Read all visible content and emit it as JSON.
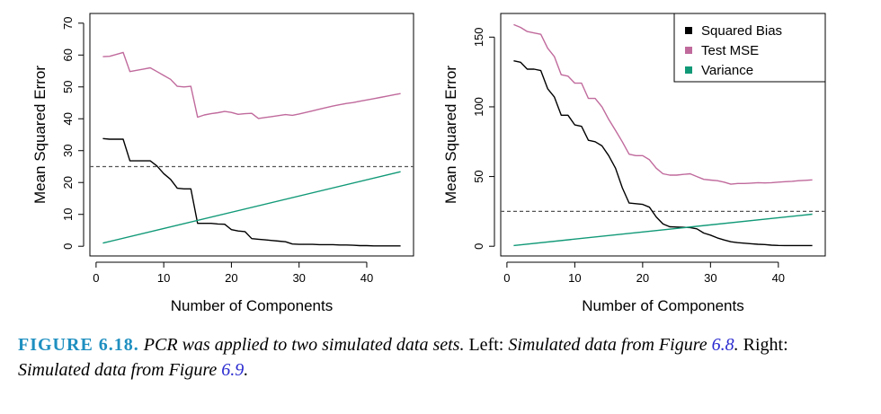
{
  "chart_data": [
    {
      "type": "line",
      "xlabel": "Number of Components",
      "ylabel": "Mean Squared Error",
      "xlim": [
        1,
        45
      ],
      "ylim": [
        0,
        70
      ],
      "xticks": [
        0,
        10,
        20,
        30,
        40
      ],
      "yticks": [
        0,
        10,
        20,
        30,
        40,
        50,
        60,
        70
      ],
      "reference_line": 25,
      "legend": false,
      "series": [
        {
          "color": "#c06a9c",
          "x": [
            1,
            2,
            3,
            4,
            5,
            6,
            7,
            8,
            9,
            10,
            11,
            12,
            13,
            14,
            15,
            16,
            17,
            18,
            19,
            20,
            21,
            22,
            23,
            24,
            25,
            26,
            27,
            28,
            29,
            30,
            31,
            32,
            33,
            34,
            35,
            36,
            37,
            38,
            39,
            40,
            41,
            42,
            43,
            44,
            45
          ],
          "y": [
            59.5,
            59.6,
            60.2,
            60.8,
            54.8,
            55.2,
            55.6,
            56.0,
            54.8,
            53.6,
            52.4,
            50.2,
            50.0,
            50.2,
            40.5,
            41.2,
            41.6,
            41.9,
            42.3,
            42.0,
            41.4,
            41.6,
            41.7,
            40.1,
            40.4,
            40.7,
            41.0,
            41.3,
            41.1,
            41.5,
            42.0,
            42.5,
            43.0,
            43.5,
            44.0,
            44.4,
            44.8,
            45.1,
            45.5,
            45.9,
            46.3,
            46.7,
            47.1,
            47.5,
            47.9
          ]
        },
        {
          "color": "#000000",
          "x": [
            1,
            2,
            3,
            4,
            5,
            6,
            7,
            8,
            9,
            10,
            11,
            12,
            13,
            14,
            15,
            16,
            17,
            18,
            19,
            20,
            21,
            22,
            23,
            24,
            25,
            26,
            27,
            28,
            29,
            30,
            31,
            32,
            33,
            34,
            35,
            36,
            37,
            38,
            39,
            40,
            41,
            42,
            43,
            44,
            45
          ],
          "y": [
            33.8,
            33.6,
            33.6,
            33.6,
            26.8,
            26.8,
            26.8,
            26.8,
            25.2,
            22.8,
            21.0,
            18.2,
            18.0,
            18.0,
            7.2,
            7.2,
            7.2,
            7.0,
            6.9,
            5.2,
            4.8,
            4.6,
            2.4,
            2.2,
            2.0,
            1.8,
            1.6,
            1.4,
            0.7,
            0.6,
            0.6,
            0.6,
            0.5,
            0.5,
            0.5,
            0.4,
            0.4,
            0.3,
            0.2,
            0.2,
            0.1,
            0.1,
            0.1,
            0.1,
            0.1
          ]
        },
        {
          "color": "#119977",
          "x": [
            1,
            45
          ],
          "y": [
            1.0,
            23.4
          ]
        }
      ]
    },
    {
      "type": "line",
      "xlabel": "Number of Components",
      "ylabel": "Mean Squared Error",
      "xlim": [
        1,
        45
      ],
      "ylim": [
        0,
        160
      ],
      "xticks": [
        0,
        10,
        20,
        30,
        40
      ],
      "yticks": [
        0,
        50,
        100,
        150
      ],
      "reference_line": 25,
      "legend": true,
      "legend_position": "top-right",
      "series": [
        {
          "name": "Squared Bias",
          "color": "#000000",
          "x": [
            1,
            2,
            3,
            4,
            5,
            6,
            7,
            8,
            9,
            10,
            11,
            12,
            13,
            14,
            15,
            16,
            17,
            18,
            19,
            20,
            21,
            22,
            23,
            24,
            25,
            26,
            27,
            28,
            29,
            30,
            31,
            32,
            33,
            34,
            35,
            36,
            37,
            38,
            39,
            40,
            41,
            42,
            43,
            44,
            45
          ],
          "y": [
            133,
            132,
            127,
            127,
            126,
            113,
            107,
            94,
            94,
            87,
            86,
            76,
            75,
            72,
            65,
            56,
            42,
            31,
            30.5,
            30,
            28,
            21,
            16,
            14,
            13.8,
            13.6,
            13.4,
            12.5,
            9.5,
            8,
            6,
            4.5,
            3.2,
            2.6,
            2.2,
            1.8,
            1.4,
            1.2,
            0.8,
            0.6,
            0.5,
            0.5,
            0.5,
            0.5,
            0.5
          ]
        },
        {
          "name": "Test MSE",
          "color": "#c06a9c",
          "x": [
            1,
            2,
            3,
            4,
            5,
            6,
            7,
            8,
            9,
            10,
            11,
            12,
            13,
            14,
            15,
            16,
            17,
            18,
            19,
            20,
            21,
            22,
            23,
            24,
            25,
            26,
            27,
            28,
            29,
            30,
            31,
            32,
            33,
            34,
            35,
            36,
            37,
            38,
            39,
            40,
            41,
            42,
            43,
            44,
            45
          ],
          "y": [
            159,
            157,
            154,
            153,
            152,
            142,
            136,
            123,
            122,
            117,
            117,
            106,
            106,
            100,
            91,
            83,
            75,
            66,
            65,
            65,
            62,
            56,
            52,
            51,
            51,
            51.5,
            52,
            50,
            48,
            47.5,
            47,
            46,
            44.5,
            45,
            45,
            45.3,
            45.6,
            45.4,
            45.6,
            46,
            46.3,
            46.6,
            47,
            47.3,
            47.6
          ]
        },
        {
          "name": "Variance",
          "color": "#119977",
          "x": [
            1,
            45
          ],
          "y": [
            0.5,
            23
          ]
        }
      ]
    }
  ],
  "caption": {
    "label": "FIGURE 6.18.",
    "part1": " PCR was applied to two simulated data sets.",
    "part2": " Left: ",
    "part3": "Simulated data from Figure ",
    "ref1": "6.8",
    "part4": ".",
    "part5": " Right: ",
    "part6": "Simulated data from Figure ",
    "ref2": "6.9",
    "part7": "."
  }
}
